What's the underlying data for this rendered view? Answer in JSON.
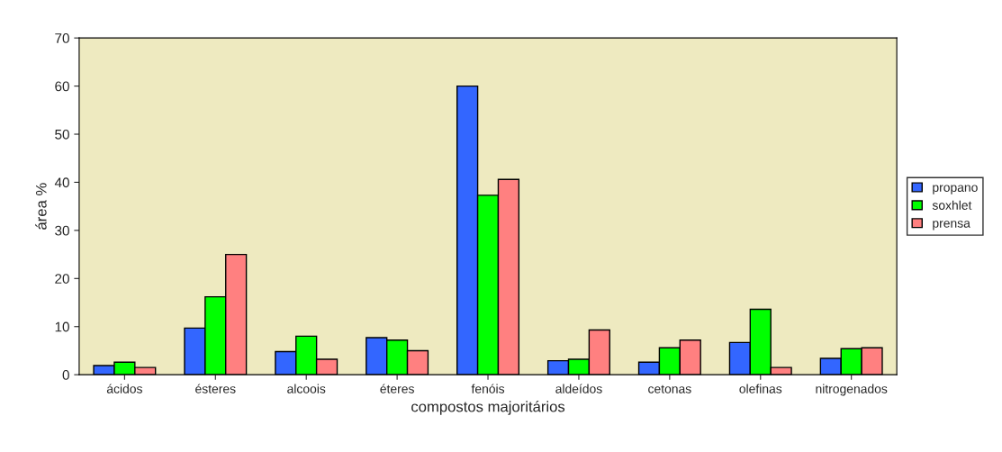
{
  "chart_data": {
    "type": "bar",
    "xlabel": "compostos majoritários",
    "ylabel": "área %",
    "categories": [
      "ácidos",
      "ésteres",
      "alcoois",
      "éteres",
      "fenóis",
      "aldeídos",
      "cetonas",
      "olefinas",
      "nitrogenados"
    ],
    "series": [
      {
        "name": "propano",
        "color": "#3366ff",
        "values": [
          1.9,
          9.7,
          4.8,
          7.7,
          60.0,
          2.9,
          2.6,
          6.7,
          3.4
        ]
      },
      {
        "name": "soxhlet",
        "color": "#00ff00",
        "values": [
          2.6,
          16.2,
          8.0,
          7.2,
          37.3,
          3.2,
          5.6,
          13.6,
          5.4
        ]
      },
      {
        "name": "prensa",
        "color": "#ff8080",
        "values": [
          1.5,
          25.0,
          3.2,
          5.0,
          40.6,
          9.3,
          7.2,
          1.5,
          5.6
        ]
      }
    ],
    "ylim": [
      0,
      70
    ],
    "yticks": [
      0,
      10,
      20,
      30,
      40,
      50,
      60,
      70
    ],
    "grid": false,
    "legend": "right"
  }
}
